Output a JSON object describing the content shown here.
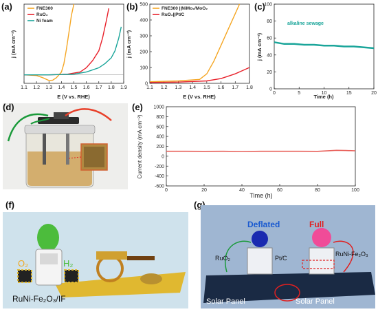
{
  "panels": {
    "a": {
      "label": "(a)",
      "chart_data": {
        "type": "line",
        "xlabel": "E (V vs. RHE)",
        "ylabel": "j (mA cm⁻²)",
        "xlim": [
          1.1,
          1.9
        ],
        "ylim": [
          -60,
          500
        ],
        "xticks": [
          "1.1",
          "1.2",
          "1.3",
          "1.4",
          "1.5",
          "1.6",
          "1.7",
          "1.8",
          "1.9"
        ],
        "series": [
          {
            "name": "FNE300",
            "color": "#f5a623",
            "x": [
              1.1,
              1.2,
              1.25,
              1.3,
              1.33,
              1.36,
              1.4,
              1.42,
              1.44,
              1.46,
              1.48,
              1.5
            ],
            "y": [
              0,
              -5,
              -20,
              -40,
              -38,
              -20,
              20,
              80,
              180,
              300,
              420,
              500
            ]
          },
          {
            "name": "RuO₂",
            "color": "#e8202a",
            "x": [
              1.1,
              1.3,
              1.45,
              1.55,
              1.6,
              1.65,
              1.7,
              1.73,
              1.76,
              1.78
            ],
            "y": [
              0,
              0,
              5,
              20,
              50,
              100,
              170,
              260,
              380,
              470
            ]
          },
          {
            "name": "Ni foam",
            "color": "#1aa59a",
            "x": [
              1.1,
              1.3,
              1.5,
              1.6,
              1.7,
              1.75,
              1.8,
              1.83,
              1.86,
              1.88
            ],
            "y": [
              0,
              0,
              5,
              20,
              50,
              80,
              120,
              170,
              260,
              340
            ]
          }
        ]
      }
    },
    "b": {
      "label": "(b)",
      "chart_data": {
        "type": "line",
        "xlabel": "E (V vs. RHE)",
        "ylabel": "j (mA cm⁻²)",
        "xlim": [
          1.1,
          1.8
        ],
        "ylim": [
          0,
          500
        ],
        "xticks": [
          "1.1",
          "1.2",
          "1.3",
          "1.4",
          "1.5",
          "1.6",
          "1.7",
          "1.8"
        ],
        "yticks": [
          "0",
          "100",
          "200",
          "300",
          "400",
          "500"
        ],
        "series": [
          {
            "name": "FNE300 ||NiMo₂/MoO₂",
            "color": "#f5a623",
            "x": [
              1.1,
              1.3,
              1.45,
              1.5,
              1.55,
              1.6,
              1.65,
              1.7,
              1.73
            ],
            "y": [
              10,
              15,
              25,
              60,
              140,
              240,
              340,
              440,
              500
            ]
          },
          {
            "name": "RuO₂||Pt/C",
            "color": "#e8202a",
            "x": [
              1.1,
              1.3,
              1.5,
              1.6,
              1.65,
              1.7,
              1.75,
              1.8
            ],
            "y": [
              5,
              8,
              15,
              30,
              45,
              60,
              80,
              100
            ]
          }
        ]
      }
    },
    "c": {
      "label": "(c)",
      "chart_data": {
        "type": "line",
        "xlabel": "Time (h)",
        "ylabel": "j (mA cm⁻²)",
        "xlim": [
          0,
          20
        ],
        "ylim": [
          0,
          100
        ],
        "xticks": [
          "0",
          "5",
          "10",
          "15",
          "20"
        ],
        "yticks": [
          "0",
          "20",
          "40",
          "60",
          "80",
          "100"
        ],
        "annotation": "alkaline sewage",
        "series": [
          {
            "name": "",
            "color": "#1aa59a",
            "x": [
              0,
              2,
              4,
              6,
              8,
              10,
              12,
              14,
              16,
              18,
              20
            ],
            "y": [
              55,
              53,
              53,
              52,
              52,
              51,
              51,
              50,
              50,
              49,
              48
            ]
          }
        ]
      }
    },
    "d": {
      "label": "(d)"
    },
    "e": {
      "label": "(e)",
      "chart_data": {
        "type": "line",
        "xlabel": "Time (h)",
        "ylabel": "Current density (mA cm⁻²)",
        "xlim": [
          0,
          100
        ],
        "ylim": [
          -600,
          1000
        ],
        "xticks": [
          "0",
          "20",
          "40",
          "60",
          "80",
          "100"
        ],
        "yticks": [
          "-600",
          "-400",
          "-200",
          "0",
          "200",
          "400",
          "600",
          "800",
          "1000"
        ],
        "series": [
          {
            "name": "",
            "color": "#e8605a",
            "x": [
              0,
              10,
              20,
              30,
              40,
              50,
              60,
              70,
              80,
              90,
              95,
              100
            ],
            "y": [
              100,
              100,
              98,
              100,
              95,
              100,
              100,
              100,
              98,
              120,
              115,
              110
            ]
          }
        ]
      }
    },
    "f": {
      "label": "(f)",
      "o2": "O₂",
      "h2": "H₂",
      "caption": "RuNi-Fe₂O₃/IF"
    },
    "g": {
      "label": "(g)",
      "deflated": "Deflated",
      "full": "Full",
      "ruo2": "RuO₂",
      "ptc": "Pt/C",
      "catalyst": "RuNi-Fe₂O₃",
      "solar1": "Solar Panel",
      "solar2": "Solar Panel"
    }
  }
}
